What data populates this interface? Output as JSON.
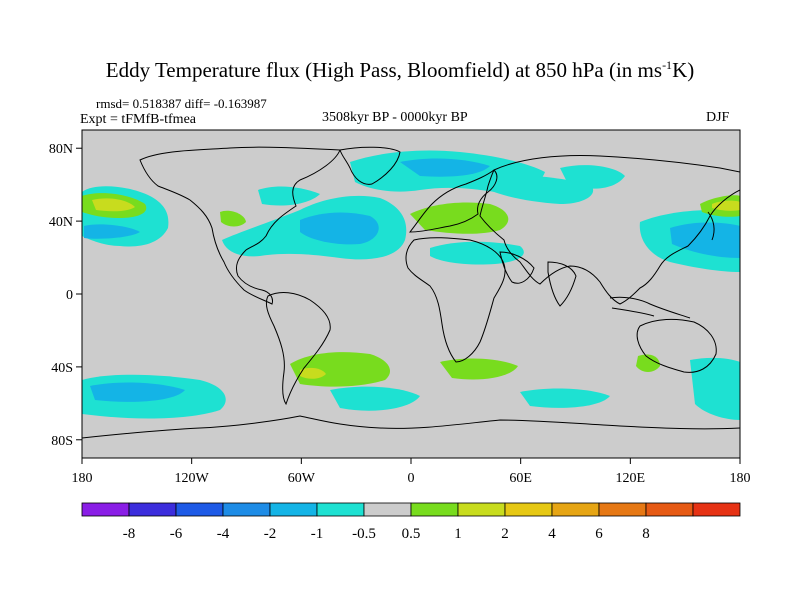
{
  "title": {
    "main": "Eddy Temperature flux (High Pass, Bloomfield) at 850 hPa (in ms",
    "exponent": "-1",
    "suffix": "K)"
  },
  "stats": {
    "rmsd": "rmsd= 0.518387 diff= -0.163987"
  },
  "experiment": "Expt = tFMfB-tfmea",
  "period": "3508kyr BP - 0000kyr BP",
  "season": "DJF",
  "map": {
    "lon_range": [
      -180,
      180
    ],
    "lat_range": [
      -90,
      90
    ],
    "lat_ticks": [
      {
        "value": 80,
        "label": "80N"
      },
      {
        "value": 40,
        "label": "40N"
      },
      {
        "value": 0,
        "label": "0"
      },
      {
        "value": -40,
        "label": "40S"
      },
      {
        "value": -80,
        "label": "80S"
      }
    ],
    "lon_ticks": [
      {
        "value": -180,
        "label": "180"
      },
      {
        "value": -120,
        "label": "120W"
      },
      {
        "value": -60,
        "label": "60W"
      },
      {
        "value": 0,
        "label": "0"
      },
      {
        "value": 60,
        "label": "60E"
      },
      {
        "value": 120,
        "label": "120E"
      },
      {
        "value": 180,
        "label": "180"
      }
    ],
    "background_color": "#cccccc"
  },
  "colorbar": {
    "colors": [
      "#8a1ee6",
      "#3c2ddc",
      "#1e5ae6",
      "#1e8ce6",
      "#14b4e6",
      "#1ee1d2",
      "#cccccc",
      "#78dc1e",
      "#c8dc1e",
      "#e6c814",
      "#e6a514",
      "#e67814",
      "#e65a14",
      "#e63214"
    ],
    "labels": [
      "-8",
      "-6",
      "-4",
      "-2",
      "-1",
      "-0.5",
      "0.5",
      "1",
      "2",
      "4",
      "6",
      "8"
    ]
  }
}
